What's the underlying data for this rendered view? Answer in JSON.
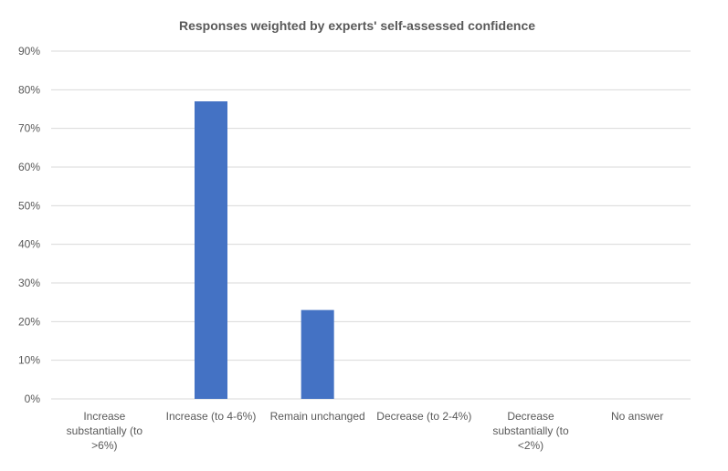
{
  "chart_data": {
    "type": "bar",
    "title": "Responses weighted by experts' self-assessed confidence",
    "categories": [
      "Increase substantially (to >6%)",
      "Increase (to 4-6%)",
      "Remain unchanged",
      "Decrease (to 2-4%)",
      "Decrease substantially (to <2%)",
      "No answer"
    ],
    "category_lines": [
      [
        "Increase",
        "substantially (to",
        ">6%)"
      ],
      [
        "Increase (to 4-6%)"
      ],
      [
        "Remain unchanged"
      ],
      [
        "Decrease (to 2-4%)"
      ],
      [
        "Decrease",
        "substantially (to",
        "<2%)"
      ],
      [
        "No answer"
      ]
    ],
    "values": [
      0,
      77,
      23,
      0,
      0,
      0
    ],
    "ylim": [
      0,
      90
    ],
    "y_ticks": [
      0,
      10,
      20,
      30,
      40,
      50,
      60,
      70,
      80,
      90
    ],
    "y_tick_labels": [
      "0%",
      "10%",
      "20%",
      "30%",
      "40%",
      "50%",
      "60%",
      "70%",
      "80%",
      "90%"
    ],
    "grid": true,
    "legend": "none",
    "bar_color": "#4472c4",
    "xlabel": "",
    "ylabel": ""
  }
}
